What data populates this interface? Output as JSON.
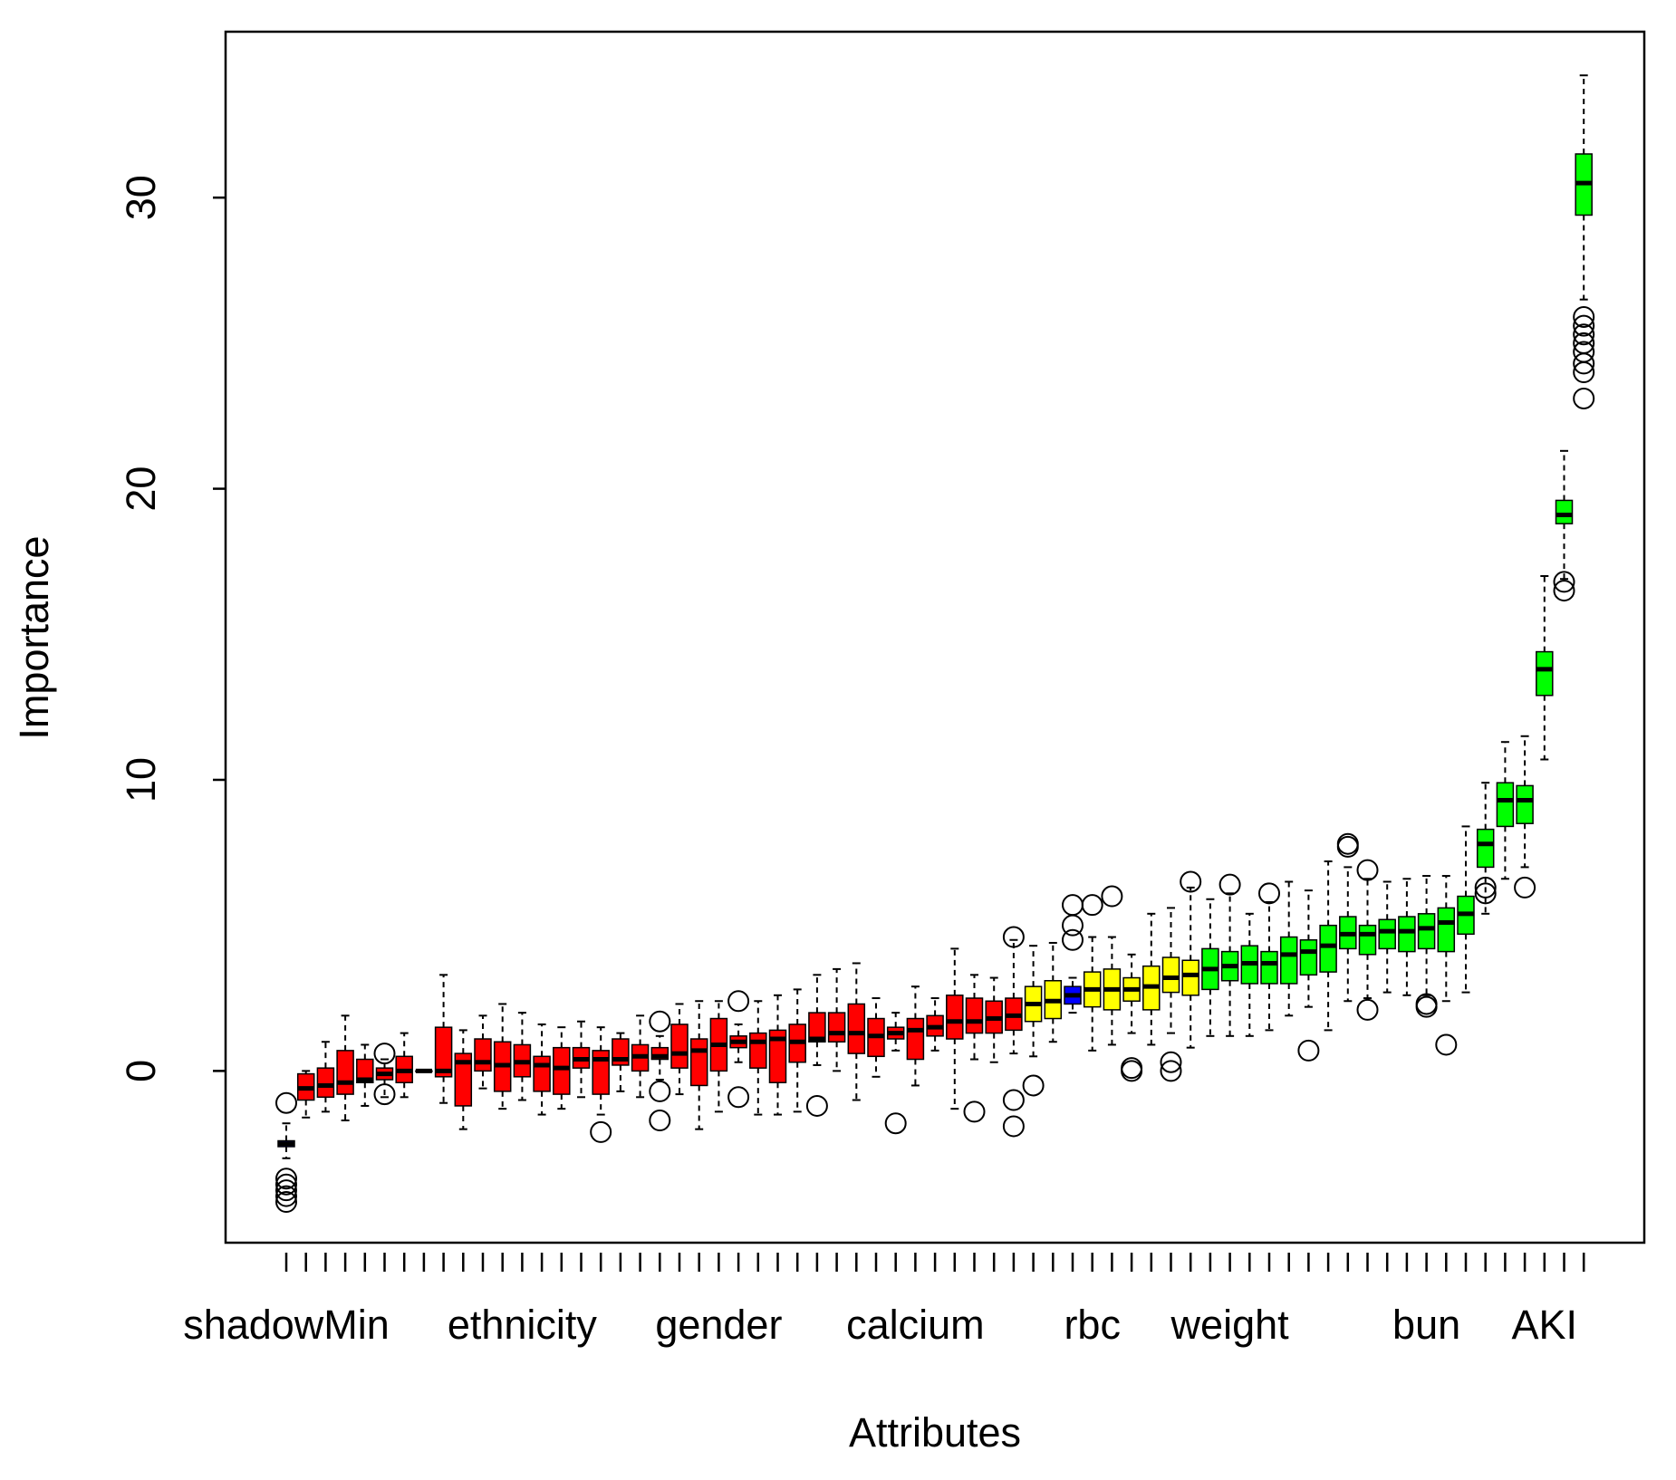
{
  "chart_data": {
    "type": "boxplot",
    "xlabel": "Attributes",
    "ylabel": "Importance",
    "ylim": [
      -5.9,
      35.7
    ],
    "yticks": [
      0,
      10,
      20,
      30
    ],
    "categories": [
      "shadowMin",
      null,
      null,
      null,
      null,
      null,
      null,
      null,
      null,
      null,
      null,
      null,
      "ethnicity",
      null,
      null,
      null,
      null,
      null,
      null,
      null,
      null,
      null,
      "gender",
      null,
      null,
      null,
      null,
      null,
      null,
      null,
      null,
      null,
      "calcium",
      null,
      null,
      null,
      null,
      null,
      null,
      null,
      null,
      "rbc",
      null,
      null,
      null,
      null,
      null,
      null,
      "weight",
      null,
      null,
      null,
      null,
      null,
      null,
      null,
      null,
      null,
      "bun",
      null,
      null,
      null,
      null,
      null,
      "AKI",
      null,
      null
    ],
    "colors": [
      "#0000ff",
      "#ff0000",
      "#ff0000",
      "#ff0000",
      "#ff0000",
      "#ff0000",
      "#ff0000",
      "#ff0000",
      "#ff0000",
      "#ff0000",
      "#ff0000",
      "#ff0000",
      "#ff0000",
      "#ff0000",
      "#ff0000",
      "#ff0000",
      "#ff0000",
      "#ff0000",
      "#ff0000",
      "#ff0000",
      "#ff0000",
      "#ff0000",
      "#ff0000",
      "#ff0000",
      "#ff0000",
      "#ff0000",
      "#ff0000",
      "#ff0000",
      "#ff0000",
      "#ff0000",
      "#ff0000",
      "#ff0000",
      "#ff0000",
      "#ff0000",
      "#ff0000",
      "#ff0000",
      "#ff0000",
      "#ff0000",
      "#ffff00",
      "#ffff00",
      "#0000ff",
      "#ffff00",
      "#ffff00",
      "#ffff00",
      "#ffff00",
      "#ffff00",
      "#ffff00",
      "#00ff00",
      "#00ff00",
      "#00ff00",
      "#00ff00",
      "#00ff00",
      "#00ff00",
      "#00ff00",
      "#00ff00",
      "#00ff00",
      "#00ff00",
      "#00ff00",
      "#00ff00",
      "#00ff00",
      "#00ff00",
      "#00ff00",
      "#00ff00",
      "#00ff00",
      "#00ff00",
      "#00ff00",
      "#00ff00"
    ],
    "min": [
      -3.0,
      -1.6,
      -1.4,
      -1.7,
      -1.2,
      -0.9,
      -0.9,
      0,
      -1.1,
      -2.0,
      -0.6,
      -1.3,
      -1.0,
      -1.5,
      -1.3,
      -0.9,
      -1.5,
      -0.7,
      -0.9,
      -0.3,
      -0.8,
      -2.0,
      -1.4,
      0.3,
      -1.5,
      -1.5,
      -1.4,
      0.2,
      0.0,
      -1.0,
      -0.2,
      0.7,
      -0.5,
      0.7,
      -1.3,
      0.4,
      0.3,
      0.6,
      0.5,
      1.0,
      2.0,
      0.7,
      0.9,
      1.3,
      0.9,
      1.3,
      0.8,
      1.2,
      1.2,
      1.2,
      1.4,
      1.9,
      2.2,
      1.4,
      2.4,
      2.5,
      2.7,
      2.6,
      2.6,
      2.4,
      2.7,
      5.4,
      6.6,
      7.0,
      10.7,
      16.9,
      26.5
    ],
    "q1": [
      -2.6,
      -1.0,
      -0.9,
      -0.8,
      -0.4,
      -0.3,
      -0.4,
      0,
      -0.2,
      -1.2,
      0.0,
      -0.7,
      -0.2,
      -0.7,
      -0.8,
      0.1,
      -0.8,
      0.2,
      0.0,
      0.4,
      0.1,
      -0.5,
      0.0,
      0.8,
      0.1,
      -0.4,
      0.3,
      1.0,
      1.0,
      0.6,
      0.5,
      1.1,
      0.4,
      1.2,
      1.1,
      1.3,
      1.3,
      1.4,
      1.7,
      1.8,
      2.3,
      2.2,
      2.1,
      2.4,
      2.1,
      2.7,
      2.6,
      2.8,
      3.1,
      3.0,
      3.0,
      3.0,
      3.3,
      3.4,
      4.2,
      4.0,
      4.2,
      4.1,
      4.2,
      4.1,
      4.7,
      7.0,
      8.4,
      8.5,
      12.9,
      18.8,
      29.4
    ],
    "median": [
      -2.5,
      -0.6,
      -0.5,
      -0.4,
      -0.3,
      -0.1,
      0.0,
      0,
      0.0,
      0.3,
      0.3,
      0.2,
      0.3,
      0.2,
      0.1,
      0.4,
      0.4,
      0.4,
      0.5,
      0.5,
      0.6,
      0.7,
      0.9,
      1.0,
      1.0,
      1.1,
      1.0,
      1.1,
      1.3,
      1.3,
      1.2,
      1.3,
      1.4,
      1.5,
      1.7,
      1.7,
      1.8,
      1.9,
      2.3,
      2.4,
      2.6,
      2.8,
      2.8,
      2.8,
      2.9,
      3.2,
      3.3,
      3.5,
      3.6,
      3.7,
      3.7,
      4.0,
      4.1,
      4.3,
      4.7,
      4.7,
      4.8,
      4.8,
      4.9,
      5.1,
      5.4,
      7.8,
      9.3,
      9.3,
      13.8,
      19.1,
      30.5
    ],
    "q3": [
      -2.4,
      -0.1,
      0.1,
      0.7,
      0.4,
      0.1,
      0.5,
      0,
      1.5,
      0.6,
      1.1,
      1.0,
      0.9,
      0.5,
      0.8,
      0.8,
      0.7,
      1.1,
      0.9,
      0.8,
      1.6,
      1.1,
      1.8,
      1.2,
      1.3,
      1.4,
      1.6,
      2.0,
      2.0,
      2.3,
      1.8,
      1.5,
      1.8,
      1.9,
      2.6,
      2.5,
      2.4,
      2.5,
      2.9,
      3.1,
      2.9,
      3.4,
      3.5,
      3.2,
      3.6,
      3.9,
      3.8,
      4.2,
      4.1,
      4.3,
      4.1,
      4.6,
      4.5,
      5.0,
      5.3,
      5.0,
      5.2,
      5.3,
      5.4,
      5.6,
      6.0,
      8.3,
      9.9,
      9.8,
      14.4,
      19.6,
      31.5
    ],
    "max": [
      -1.8,
      0.0,
      1.0,
      1.9,
      0.9,
      0.4,
      1.3,
      0,
      3.3,
      1.4,
      1.9,
      2.3,
      2.0,
      1.6,
      1.5,
      1.7,
      1.5,
      1.3,
      1.9,
      1.2,
      2.3,
      2.4,
      2.4,
      1.6,
      2.4,
      2.6,
      2.8,
      3.3,
      3.5,
      3.7,
      2.5,
      2.0,
      2.9,
      2.5,
      4.2,
      3.3,
      3.2,
      4.5,
      4.3,
      4.4,
      3.2,
      4.6,
      4.6,
      4.0,
      5.4,
      5.6,
      6.3,
      5.9,
      6.1,
      5.4,
      5.8,
      6.5,
      6.2,
      7.2,
      7.0,
      6.6,
      6.5,
      6.6,
      6.7,
      6.7,
      8.4,
      9.9,
      11.3,
      11.5,
      17.0,
      21.3,
      34.2
    ],
    "outliers": [
      [
        -1.1,
        -3.7,
        -3.9,
        -4.1,
        -4.3,
        -4.5
      ],
      [],
      [],
      [],
      [],
      [
        0.6,
        -0.8
      ],
      [],
      [],
      [],
      [],
      [],
      [],
      [],
      [],
      [],
      [],
      [
        -2.1
      ],
      [],
      [],
      [
        1.7,
        -0.7,
        -1.7
      ],
      [],
      [],
      [],
      [
        2.4,
        -0.9
      ],
      [],
      [],
      [],
      [
        -1.2
      ],
      [],
      [],
      [],
      [
        -1.8
      ],
      [],
      [],
      [],
      [
        -1.4
      ],
      [],
      [
        4.6,
        -1.0,
        -1.9
      ],
      [
        -0.5
      ],
      [],
      [
        4.5,
        5.0,
        5.7
      ],
      [
        5.7
      ],
      [
        6.0
      ],
      [
        0.1,
        0.0
      ],
      [],
      [
        0.3,
        0.0
      ],
      [
        6.5
      ],
      [],
      [
        6.4
      ],
      [],
      [
        6.1
      ],
      [],
      [
        0.7
      ],
      [],
      [
        7.7,
        7.8
      ],
      [
        6.9,
        2.1
      ],
      [],
      [],
      [
        2.2,
        2.3
      ],
      [
        0.9
      ],
      [],
      [
        6.1,
        6.3
      ],
      [],
      [
        6.3
      ],
      [],
      [
        16.5,
        16.8
      ],
      [
        23.1,
        24.0,
        24.3,
        24.7,
        25.0,
        25.3,
        25.6,
        25.9
      ]
    ]
  }
}
